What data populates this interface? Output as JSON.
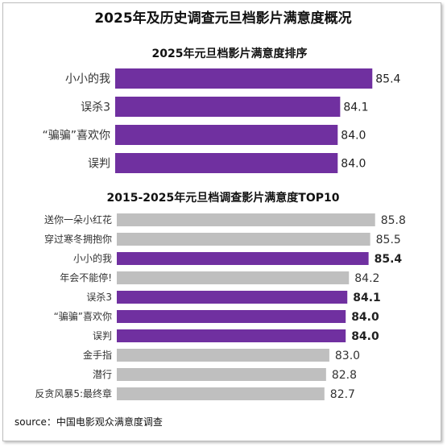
{
  "header": {
    "title": "2025年及历史调查元旦档影片满意度概况"
  },
  "source": "source：中国电影观众满意度调查",
  "chart_data": [
    {
      "type": "bar",
      "orientation": "horizontal",
      "title": "2025年元旦档影片满意度排序",
      "categories": [
        "小小的我",
        "误杀3",
        "“骗骗”喜欢你",
        "误判"
      ],
      "values": [
        85.4,
        84.1,
        84.0,
        84.0
      ],
      "value_labels": [
        "85.4",
        "84.1",
        "84.0",
        "84.0"
      ],
      "colors": [
        "#7030a0",
        "#7030a0",
        "#7030a0",
        "#7030a0"
      ],
      "legend": "none",
      "grid": false
    },
    {
      "type": "bar",
      "orientation": "horizontal",
      "title": "2015-2025年元旦档调查影片满意度TOP10",
      "categories": [
        "送你一朵小红花",
        "穿过寒冬拥抱你",
        "小小的我",
        "年会不能停!",
        "误杀3",
        "“骗骗”喜欢你",
        "误判",
        "金手指",
        "潜行",
        "反贪风暴5:最终章"
      ],
      "values": [
        85.8,
        85.5,
        85.4,
        84.2,
        84.1,
        84.0,
        84.0,
        83.0,
        82.8,
        82.7
      ],
      "value_labels": [
        "85.8",
        "85.5",
        "85.4",
        "84.2",
        "84.1",
        "84.0",
        "84.0",
        "83.0",
        "82.8",
        "82.7"
      ],
      "highlight": [
        false,
        false,
        true,
        false,
        true,
        true,
        true,
        false,
        false,
        false
      ],
      "colors": {
        "highlight": "#7030a0",
        "other": "#bfbfbf"
      },
      "legend": "none",
      "grid": false
    }
  ]
}
